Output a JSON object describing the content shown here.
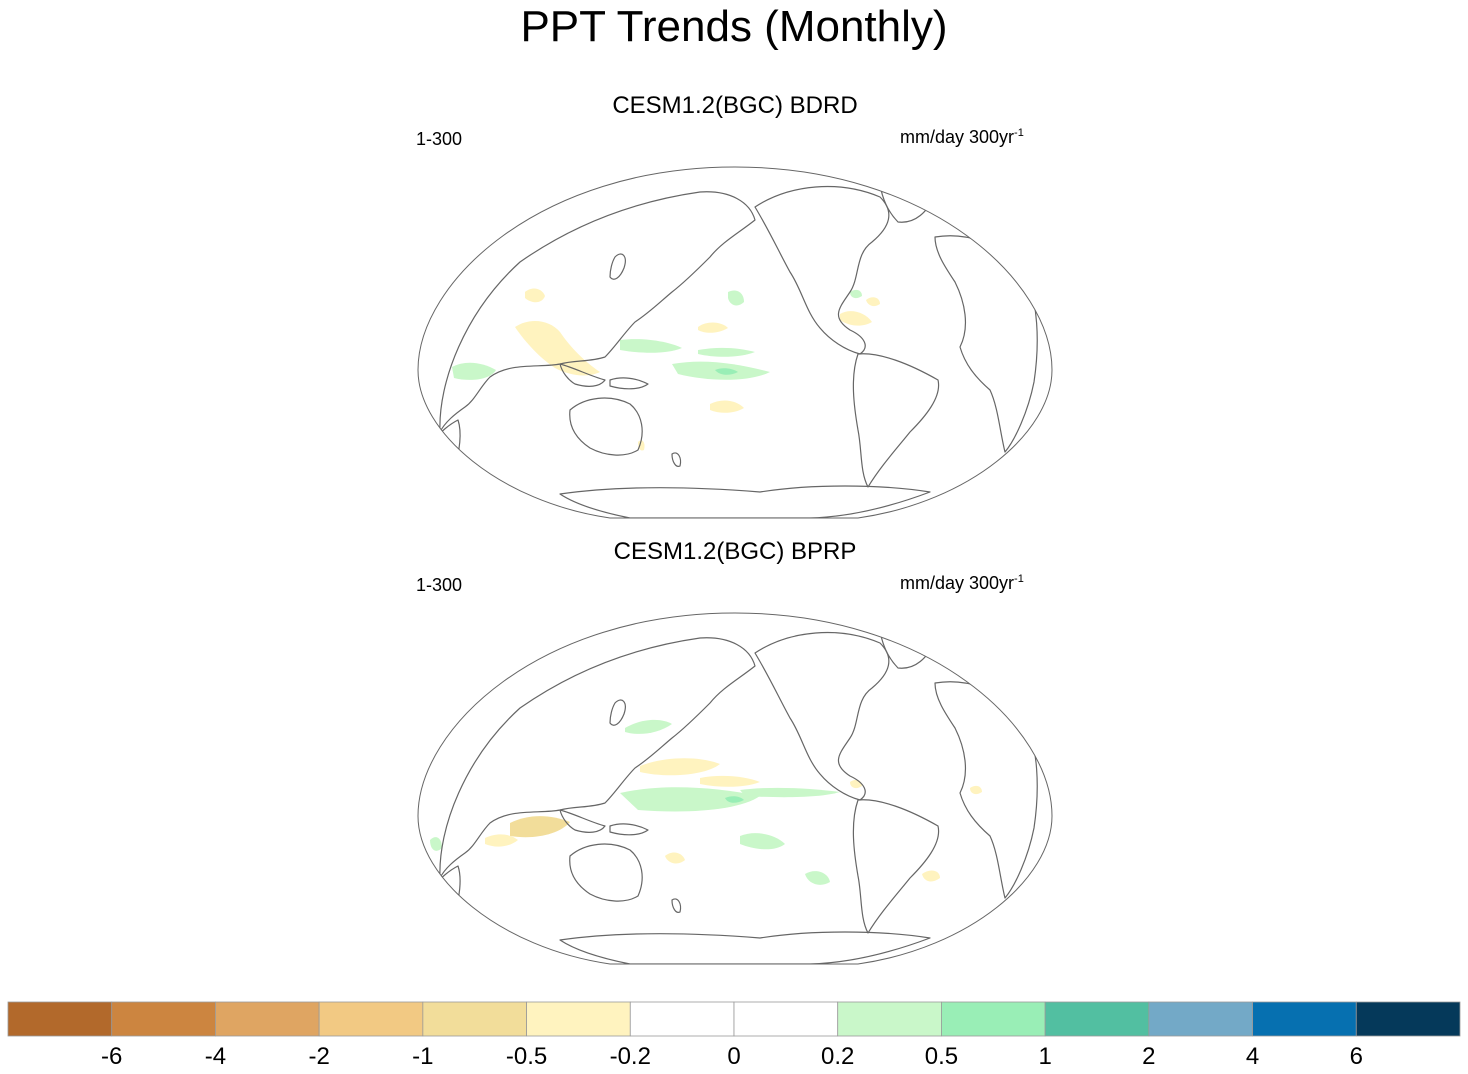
{
  "chart_data": {
    "type": "filled-contour-map",
    "title": "PPT Trends (Monthly)",
    "projection": "global map (Pacific-centered), shared color scale",
    "panels": [
      {
        "title": "CESM1.2(BGC) BDRD",
        "period": "1-300",
        "units_main": "mm/day 300yr",
        "units_exp": "-1"
      },
      {
        "title": "CESM1.2(BGC) BPRP",
        "period": "1-300",
        "units_main": "mm/day 300yr",
        "units_exp": "-1"
      }
    ],
    "colorbar": {
      "levels": [
        "-6",
        "-4",
        "-2",
        "-1",
        "-0.5",
        "-0.2",
        "0",
        "0.2",
        "0.5",
        "1",
        "2",
        "4",
        "6"
      ],
      "colors": [
        "#b2692b",
        "#cc8540",
        "#dfa562",
        "#f2c983",
        "#f2dd9a",
        "#fff3bf",
        "#ffffff",
        "#ffffff",
        "#c9f7c9",
        "#99eeb6",
        "#52bfa1",
        "#73a9c7",
        "#0670b0",
        "#05395a"
      ]
    },
    "colors": {
      "land_outline": "#666666",
      "dry_light": "#fff3bf",
      "dry_mid": "#f2dd9a",
      "wet_light": "#c9f7c9",
      "wet_mid": "#99eeb6"
    }
  }
}
